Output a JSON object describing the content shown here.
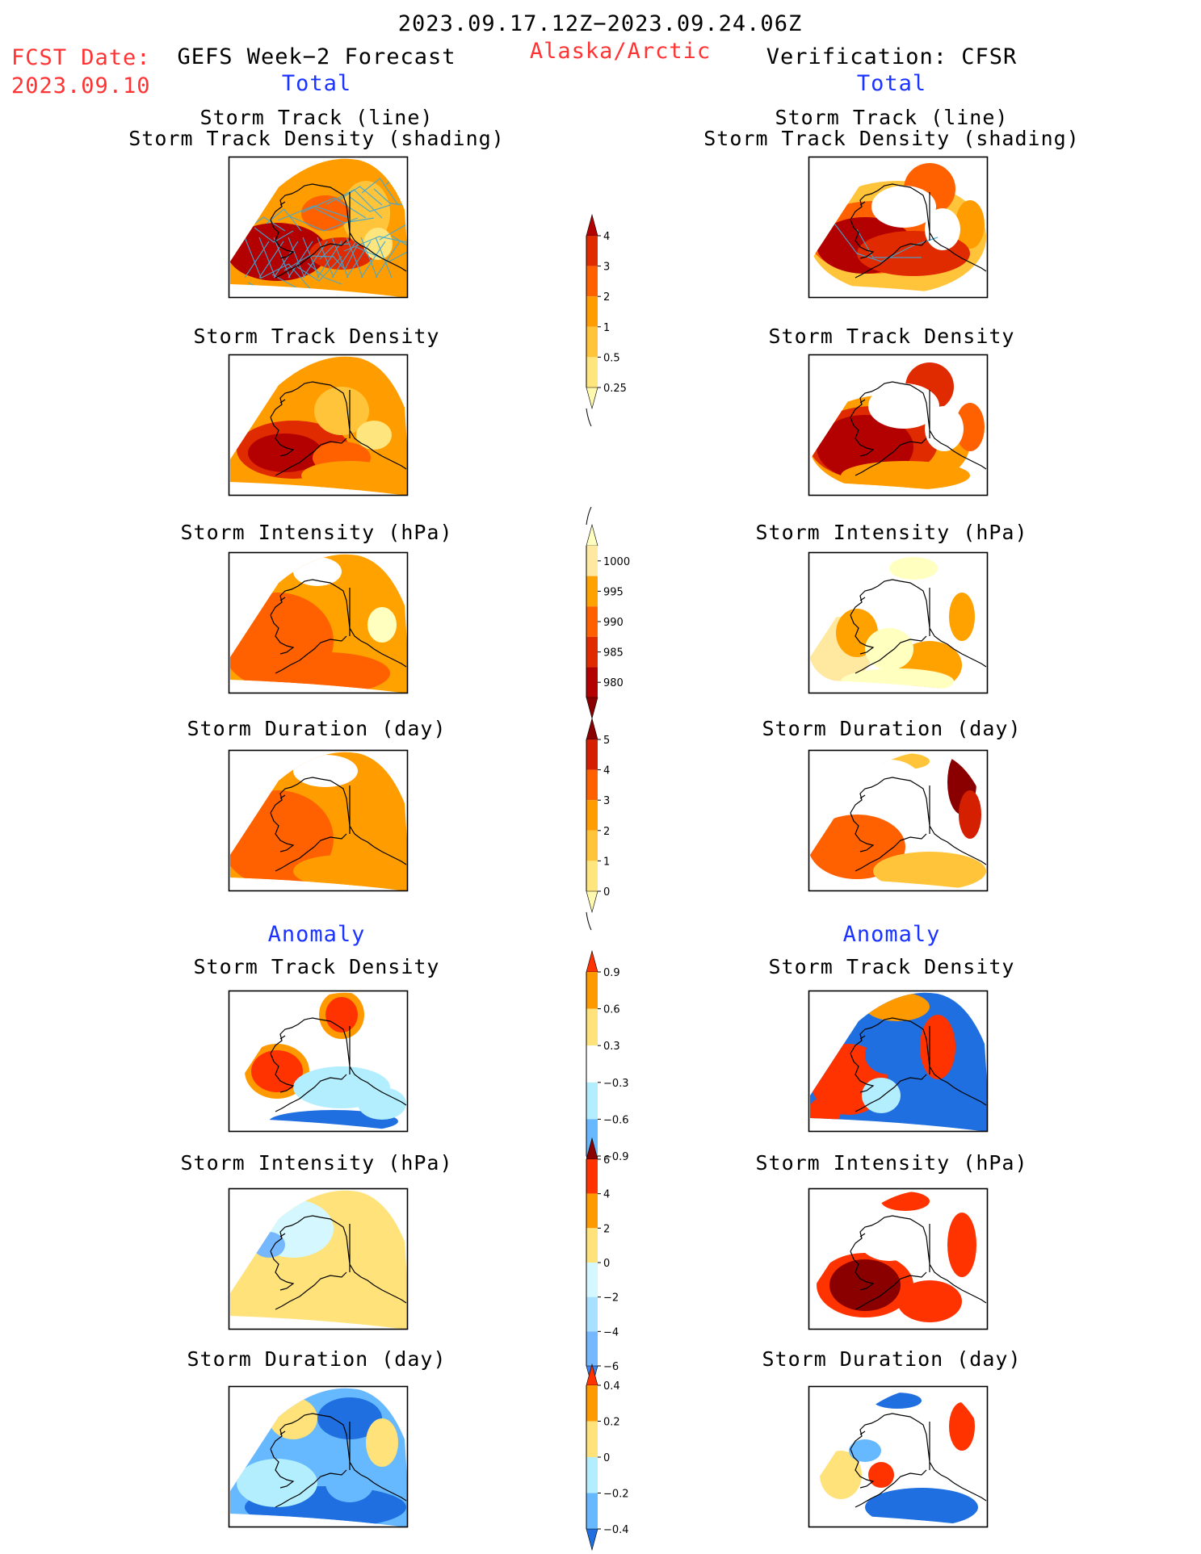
{
  "header": {
    "date_range": "2023.09.17.12Z−2023.09.24.06Z",
    "fcst_label": "FCST Date:",
    "fcst_date": "2023.09.10",
    "left_title": "GEFS Week−2 Forecast",
    "region": "Alaska/Arctic",
    "right_title": "Verification: CFSR",
    "total_label": "Total",
    "anomaly_label": "Anomaly"
  },
  "colors": {
    "text_red": "#ff3333",
    "text_blue": "#1a33ff",
    "track_line": "#3ea9d6",
    "coast": "#000000"
  },
  "chart_data": [
    {
      "type": "heatmap",
      "panel": "forecast-total-track",
      "title_line1": "Storm Track (line)",
      "title_line2": "Storm Track Density (shading)",
      "pattern": "dense tracks over Bering Sea, high density west",
      "levels": [
        0.25,
        0.5,
        1,
        2,
        3,
        4
      ]
    },
    {
      "type": "heatmap",
      "panel": "verification-total-track",
      "title_line1": "Storm Track (line)",
      "title_line2": "Storm Track Density (shading)",
      "levels": [
        0.25,
        0.5,
        1,
        2,
        3,
        4
      ]
    },
    {
      "type": "heatmap",
      "panel": "forecast-total-density",
      "title": "Storm Track Density",
      "levels": [
        0.25,
        0.5,
        1,
        2,
        3,
        4
      ]
    },
    {
      "type": "heatmap",
      "panel": "verification-total-density",
      "title": "Storm Track Density",
      "levels": [
        0.25,
        0.5,
        1,
        2,
        3,
        4
      ]
    },
    {
      "type": "heatmap",
      "panel": "forecast-total-intensity",
      "title": "Storm Intensity (hPa)",
      "levels": [
        1000,
        995,
        990,
        985,
        980
      ]
    },
    {
      "type": "heatmap",
      "panel": "verification-total-intensity",
      "title": "Storm Intensity (hPa)",
      "levels": [
        1000,
        995,
        990,
        985,
        980
      ]
    },
    {
      "type": "heatmap",
      "panel": "forecast-total-duration",
      "title": "Storm Duration (day)",
      "levels": [
        0,
        1,
        2,
        3,
        4,
        5
      ]
    },
    {
      "type": "heatmap",
      "panel": "verification-total-duration",
      "title": "Storm Duration (day)",
      "levels": [
        0,
        1,
        2,
        3,
        4,
        5
      ]
    },
    {
      "type": "heatmap",
      "panel": "forecast-anom-density",
      "title": "Storm Track Density",
      "levels": [
        -0.9,
        -0.6,
        -0.3,
        0.3,
        0.6,
        0.9
      ]
    },
    {
      "type": "heatmap",
      "panel": "verification-anom-density",
      "title": "Storm Track Density",
      "levels": [
        -0.9,
        -0.6,
        -0.3,
        0.3,
        0.6,
        0.9
      ]
    },
    {
      "type": "heatmap",
      "panel": "forecast-anom-intensity",
      "title": "Storm Intensity (hPa)",
      "levels": [
        -6,
        -4,
        -2,
        0,
        2,
        4,
        6
      ]
    },
    {
      "type": "heatmap",
      "panel": "verification-anom-intensity",
      "title": "Storm Intensity (hPa)",
      "levels": [
        -6,
        -4,
        -2,
        0,
        2,
        4,
        6
      ]
    },
    {
      "type": "heatmap",
      "panel": "forecast-anom-duration",
      "title": "Storm Duration (day)",
      "levels": [
        -0.4,
        -0.2,
        0,
        0.2,
        0.4
      ]
    },
    {
      "type": "heatmap",
      "panel": "verification-anom-duration",
      "title": "Storm Duration (day)",
      "levels": [
        -0.4,
        -0.2,
        0,
        0.2,
        0.4
      ]
    }
  ],
  "colorbars": [
    {
      "name": "track-density-colorbar",
      "labels": [
        "4",
        "3",
        "2",
        "1",
        "0.5",
        "0.25"
      ],
      "colors": [
        "#b30000",
        "#e02a00",
        "#ff6000",
        "#ff9d00",
        "#ffc43a",
        "#ffe57d",
        "#fff9b0"
      ],
      "extend": "both"
    },
    {
      "name": "intensity-colorbar",
      "labels": [
        "1000",
        "995",
        "990",
        "985",
        "980"
      ],
      "colors": [
        "#ffffc0",
        "#ffe9a0",
        "#ffa200",
        "#ff6000",
        "#e02a00",
        "#b30000",
        "#8a0000"
      ],
      "extend": "both"
    },
    {
      "name": "duration-colorbar",
      "labels": [
        "5",
        "4",
        "3",
        "2",
        "1",
        "0"
      ],
      "colors": [
        "#8a0000",
        "#d41f00",
        "#ff6000",
        "#ff9d00",
        "#ffc43a",
        "#ffe57d",
        "#fff9b0"
      ],
      "extend": "both"
    },
    {
      "name": "anom-density-colorbar",
      "labels": [
        "0.9",
        "0.6",
        "0.3",
        "−0.3",
        "−0.6",
        "−0.9"
      ],
      "colors": [
        "#ff3300",
        "#ff9900",
        "#ffe27a",
        "#ffffff",
        "#b3eeff",
        "#66b8ff",
        "#1f6fe0"
      ],
      "extend": "both"
    },
    {
      "name": "anom-intensity-colorbar",
      "labels": [
        "6",
        "4",
        "2",
        "0",
        "−2",
        "−4",
        "−6"
      ],
      "colors": [
        "#8a0000",
        "#ff3300",
        "#ff9900",
        "#ffe27a",
        "#d5f7ff",
        "#a8e0ff",
        "#75b8ff",
        "#3b84f0"
      ],
      "extend": "both"
    },
    {
      "name": "anom-duration-colorbar",
      "labels": [
        "0.4",
        "0.2",
        "0",
        "−0.2",
        "−0.4"
      ],
      "colors": [
        "#ff3300",
        "#ff9900",
        "#ffe27a",
        "#b3eeff",
        "#66b8ff",
        "#1f6fe0"
      ],
      "extend": "both"
    }
  ]
}
